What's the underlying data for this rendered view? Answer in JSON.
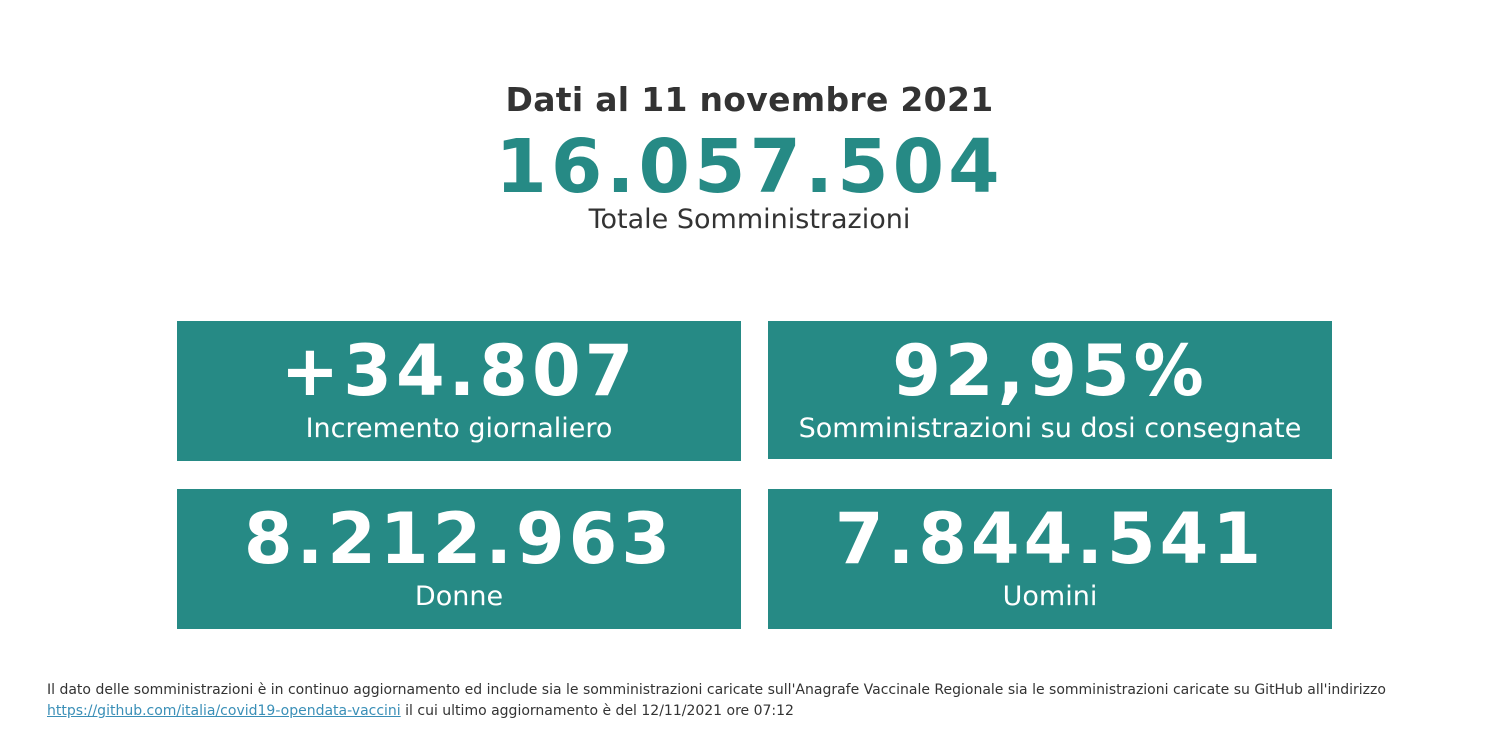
{
  "header": {
    "date_title": "Dati al 11 novembre 2021",
    "total_value": "16.057.504",
    "total_label": "Totale Somministrazioni"
  },
  "cards": [
    {
      "value": "+34.807",
      "label": "Incremento giornaliero"
    },
    {
      "value": "92,95%",
      "label": "Somministrazioni su dosi consegnate"
    },
    {
      "value": "8.212.963",
      "label": "Donne"
    },
    {
      "value": "7.844.541",
      "label": "Uomini"
    }
  ],
  "footnote": {
    "text_before": "Il dato delle somministrazioni è in continuo aggiornamento ed include sia le somministrazioni caricate sull'Anagrafe Vaccinale Regionale sia le somministrazioni caricate su GitHub all'indirizzo",
    "link_text": "https://github.com/italia/covid19-opendata-vaccini",
    "text_after": "il cui ultimo aggiornamento è del 12/11/2021 ore 07:12"
  },
  "colors": {
    "accent": "#268a85",
    "text": "#333333",
    "link": "#3a8fb7"
  }
}
